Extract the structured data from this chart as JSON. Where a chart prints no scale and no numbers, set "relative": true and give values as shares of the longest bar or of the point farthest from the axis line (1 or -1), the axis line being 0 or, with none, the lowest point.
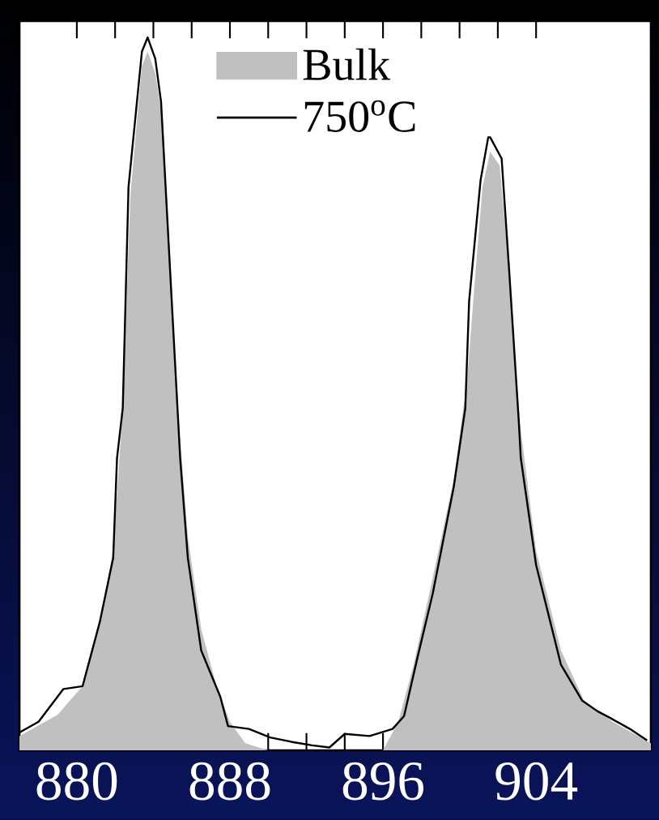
{
  "chart_data": {
    "type": "area",
    "relative": true,
    "legend": "top right",
    "xlim": [
      877,
      910
    ],
    "xticks": [
      880,
      888,
      896,
      904
    ],
    "series": [
      {
        "name": "Bulk",
        "color": "#c0c0c0",
        "x": [
          877,
          879,
          880.3,
          881.2,
          881.9,
          882.4,
          882.8,
          883.4,
          883.7,
          884.1,
          884.5,
          885.3,
          885.8,
          886.5,
          887.3,
          888.0,
          888.8,
          890,
          896,
          896.8,
          897.6,
          898.5,
          899.7,
          900.4,
          900.8,
          901.2,
          901.6,
          902.1,
          902.6,
          903.1,
          904.0,
          905.3,
          906.5,
          908,
          910
        ],
        "values": [
          0.02,
          0.05,
          0.09,
          0.18,
          0.28,
          0.48,
          0.78,
          0.96,
          0.98,
          0.95,
          0.88,
          0.47,
          0.3,
          0.17,
          0.09,
          0.04,
          0.01,
          0.0,
          0.0,
          0.04,
          0.12,
          0.23,
          0.38,
          0.52,
          0.66,
          0.79,
          0.84,
          0.82,
          0.67,
          0.47,
          0.28,
          0.14,
          0.07,
          0.04,
          0.01
        ]
      },
      {
        "name": "750$^{o}$C",
        "type": "line",
        "color": "#000000",
        "x": [
          877,
          878,
          879.3,
          880.3,
          881.2,
          881.9,
          882.1,
          882.4,
          882.7,
          883.4,
          883.7,
          884.1,
          884.4,
          885.3,
          885.4,
          885.8,
          886.5,
          887.5,
          887.9,
          889,
          890.1,
          891.2,
          892.3,
          893.2,
          894.0,
          895.3,
          896.5,
          897.1,
          897.8,
          898.6,
          899.7,
          900.3,
          900.5,
          901.1,
          901.5,
          901.6,
          902.2,
          902.6,
          903.1,
          903.2,
          904.0,
          905.3,
          906.4,
          907.2,
          907.9,
          908.9,
          909.8
        ],
        "values": [
          0.025,
          0.04,
          0.086,
          0.09,
          0.18,
          0.27,
          0.41,
          0.48,
          0.79,
          0.98,
          1.0,
          0.97,
          0.91,
          0.46,
          0.41,
          0.27,
          0.14,
          0.075,
          0.034,
          0.03,
          0.018,
          0.012,
          0.007,
          0.004,
          0.023,
          0.02,
          0.03,
          0.048,
          0.13,
          0.22,
          0.37,
          0.48,
          0.63,
          0.8,
          0.86,
          0.86,
          0.83,
          0.67,
          0.46,
          0.41,
          0.26,
          0.12,
          0.07,
          0.055,
          0.045,
          0.03,
          0.014
        ]
      }
    ]
  }
}
